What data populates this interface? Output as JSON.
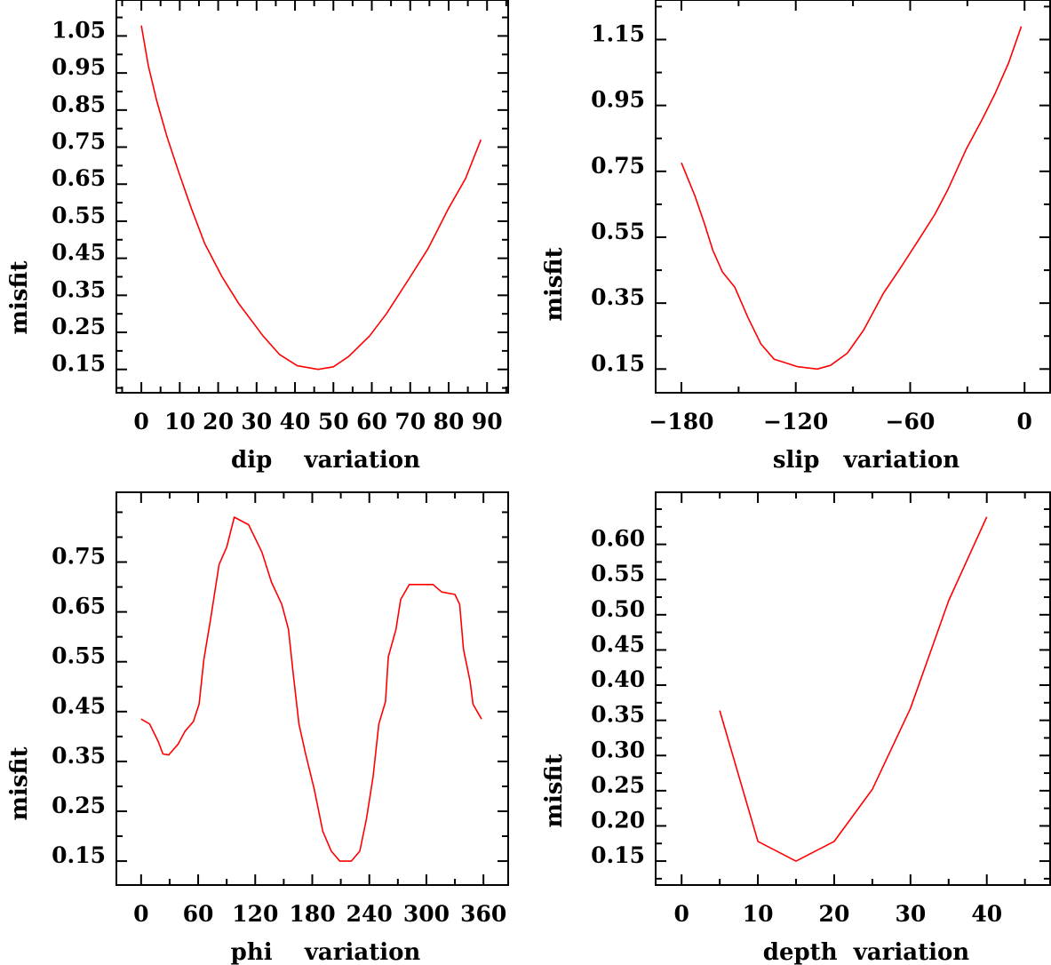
{
  "chart_data": [
    {
      "type": "line",
      "title": "",
      "xlabel": "dip    variation",
      "ylabel": "misfit",
      "color": "#ff0000",
      "xlim": [
        -6.5,
        95.5
      ],
      "ylim": [
        0.087,
        1.147
      ],
      "xticks": {
        "major": [
          0,
          10,
          20,
          30,
          40,
          50,
          60,
          70,
          80,
          90
        ],
        "labels": [
          "0",
          "10",
          "20",
          "30",
          "40",
          "50",
          "60",
          "70",
          "80",
          "90"
        ],
        "minor_step": 5
      },
      "yticks": {
        "major": [
          0.15,
          0.25,
          0.35,
          0.45,
          0.55,
          0.65,
          0.75,
          0.85,
          0.95,
          1.05
        ],
        "labels": [
          "0.15",
          "0.25",
          "0.35",
          "0.45",
          "0.55",
          "0.65",
          "0.75",
          "0.85",
          "0.95",
          "1.05"
        ],
        "minor_step": 0.05
      },
      "x": [
        0,
        1.8,
        4,
        6.7,
        9.8,
        13,
        16.5,
        21,
        25.4,
        31.7,
        36,
        40.6,
        46,
        50,
        54,
        59.4,
        63.8,
        70,
        74.6,
        80,
        84.4,
        88.4
      ],
      "y": [
        1.078,
        0.97,
        0.875,
        0.777,
        0.68,
        0.585,
        0.49,
        0.4,
        0.327,
        0.24,
        0.19,
        0.16,
        0.15,
        0.157,
        0.185,
        0.24,
        0.3,
        0.4,
        0.475,
        0.585,
        0.665,
        0.77
      ]
    },
    {
      "type": "line",
      "title": "",
      "xlabel": "slip   variation",
      "ylabel": "misfit",
      "color": "#ff0000",
      "xlim": [
        -193.5,
        13.4
      ],
      "ylim": [
        0.078,
        1.27
      ],
      "xticks": {
        "major": [
          -180,
          -120,
          -60,
          0
        ],
        "labels": [
          "−180",
          "−120",
          "−60",
          "0"
        ],
        "minor_step": 30
      },
      "yticks": {
        "major": [
          0.15,
          0.35,
          0.55,
          0.75,
          0.95,
          1.15
        ],
        "labels": [
          "0.15",
          "0.35",
          "0.55",
          "0.75",
          "0.95",
          "1.15"
        ],
        "minor_step": 0.1
      },
      "x": [
        -180,
        -173,
        -168,
        -163.5,
        -158.4,
        -152,
        -145,
        -138.3,
        -131.4,
        -119,
        -108.7,
        -101.8,
        -93,
        -84.4,
        -74,
        -65.4,
        -55,
        -47,
        -40.2,
        -30.7,
        -22,
        -15.3,
        -8.3,
        -1.7
      ],
      "y": [
        0.776,
        0.677,
        0.593,
        0.51,
        0.444,
        0.398,
        0.305,
        0.226,
        0.18,
        0.157,
        0.15,
        0.161,
        0.198,
        0.268,
        0.38,
        0.454,
        0.547,
        0.62,
        0.695,
        0.816,
        0.91,
        0.988,
        1.08,
        1.19
      ]
    },
    {
      "type": "line",
      "title": "",
      "xlabel": "phi    variation",
      "ylabel": "misfit",
      "color": "#ff0000",
      "xlim": [
        -26,
        386
      ],
      "ylim": [
        0.102,
        0.89
      ],
      "xticks": {
        "major": [
          0,
          60,
          120,
          180,
          240,
          300,
          360
        ],
        "labels": [
          "0",
          "60",
          "120",
          "180",
          "240",
          "300",
          "360"
        ],
        "minor_step": 30
      },
      "yticks": {
        "major": [
          0.15,
          0.25,
          0.35,
          0.45,
          0.55,
          0.65,
          0.75
        ],
        "labels": [
          "0.15",
          "0.25",
          "0.35",
          "0.45",
          "0.55",
          "0.65",
          "0.75"
        ],
        "minor_step": 0.05
      },
      "x": [
        0,
        9,
        18,
        23,
        29,
        39,
        46,
        55,
        61,
        66,
        73,
        82,
        90,
        98,
        113,
        127,
        137,
        148,
        155,
        160,
        166,
        173,
        182,
        191,
        200,
        209,
        221,
        230,
        237,
        244,
        250,
        257,
        260,
        268,
        273,
        282,
        293,
        307,
        316,
        330,
        335,
        339,
        346,
        349,
        358
      ],
      "y": [
        0.435,
        0.425,
        0.39,
        0.365,
        0.363,
        0.385,
        0.41,
        0.43,
        0.465,
        0.555,
        0.635,
        0.745,
        0.78,
        0.84,
        0.825,
        0.77,
        0.71,
        0.665,
        0.615,
        0.525,
        0.425,
        0.365,
        0.295,
        0.21,
        0.17,
        0.15,
        0.15,
        0.17,
        0.235,
        0.32,
        0.425,
        0.47,
        0.56,
        0.615,
        0.675,
        0.705,
        0.705,
        0.705,
        0.69,
        0.685,
        0.665,
        0.575,
        0.51,
        0.465,
        0.435
      ]
    },
    {
      "type": "line",
      "title": "",
      "xlabel": "depth  variation",
      "ylabel": "misfit",
      "color": "#ff0000",
      "xlim": [
        -3.4,
        48.3
      ],
      "ylim": [
        0.116,
        0.674
      ],
      "xticks": {
        "major": [
          0,
          10,
          20,
          30,
          40
        ],
        "labels": [
          "0",
          "10",
          "20",
          "30",
          "40"
        ],
        "minor_step": 5
      },
      "yticks": {
        "major": [
          0.15,
          0.2,
          0.25,
          0.3,
          0.35,
          0.4,
          0.45,
          0.5,
          0.55,
          0.6
        ],
        "labels": [
          "0.15",
          "0.20",
          "0.25",
          "0.30",
          "0.35",
          "0.40",
          "0.45",
          "0.50",
          "0.55",
          "0.60"
        ],
        "minor_step": 0.025
      },
      "x": [
        5,
        10,
        15,
        20,
        25,
        30,
        35,
        40
      ],
      "y": [
        0.364,
        0.178,
        0.15,
        0.178,
        0.252,
        0.367,
        0.52,
        0.639
      ]
    }
  ]
}
